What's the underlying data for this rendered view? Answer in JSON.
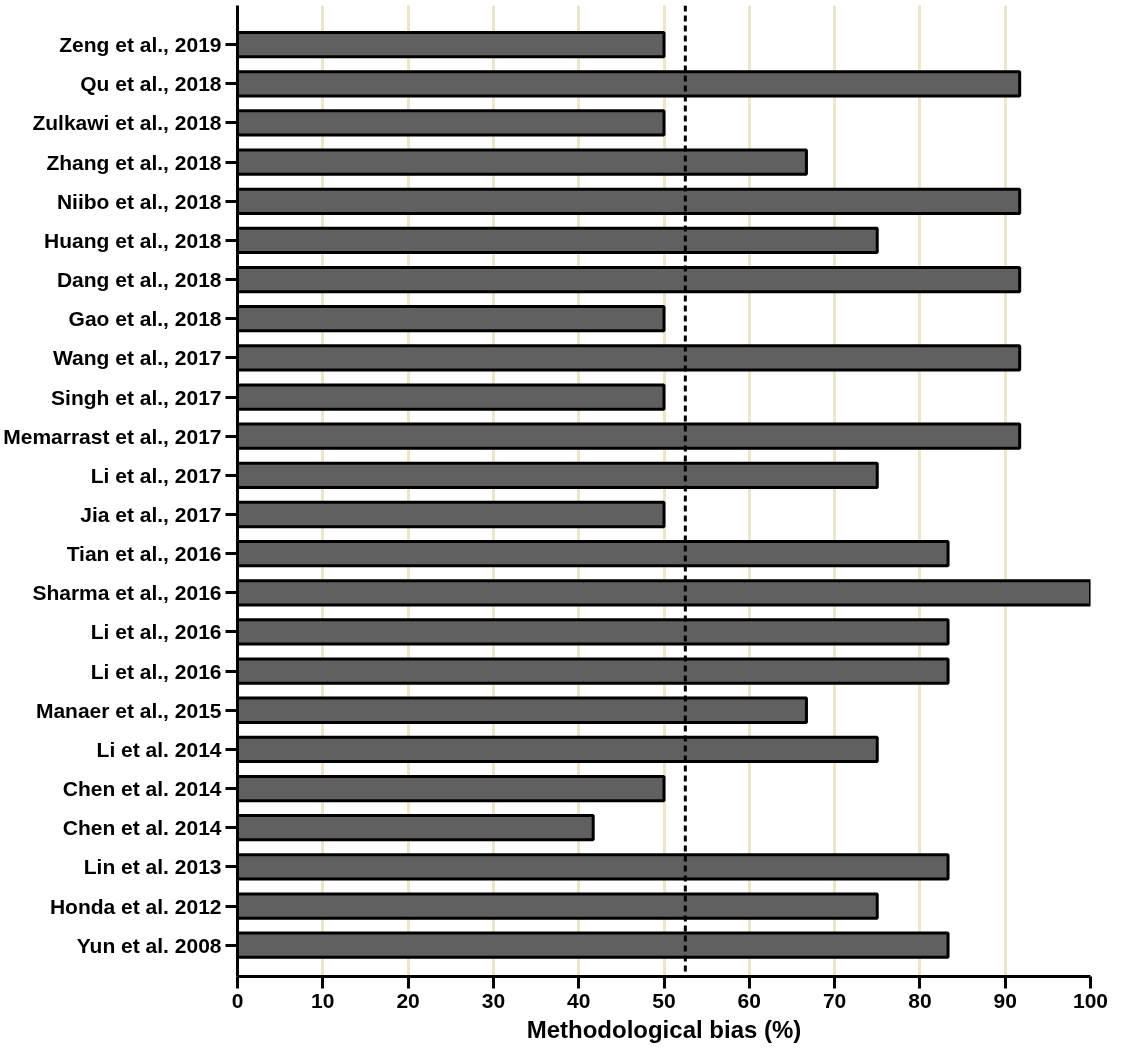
{
  "chart_data": {
    "type": "bar",
    "orientation": "horizontal",
    "xlabel": "Methodological bias (%)",
    "categories": [
      "Zeng et al., 2019",
      "Qu et al., 2018",
      "Zulkawi et al., 2018",
      "Zhang et al., 2018",
      "Niibo et al., 2018",
      "Huang et al., 2018",
      "Dang et al., 2018",
      "Gao et al., 2018",
      "Wang et al., 2017",
      "Singh et al., 2017",
      "Memarrast et al., 2017",
      "Li et al., 2017",
      "Jia et al., 2017",
      "Tian et al., 2016",
      "Sharma et al., 2016",
      "Li et al., 2016",
      "Li et al., 2016",
      "Manaer et al., 2015",
      "Li et al. 2014",
      "Chen et al. 2014",
      "Chen et al. 2014",
      "Lin et al. 2013",
      "Honda et al. 2012",
      "Yun et al. 2008"
    ],
    "values": [
      50,
      91.7,
      50,
      66.7,
      91.7,
      75,
      91.7,
      50,
      91.7,
      50,
      91.7,
      75,
      50,
      83.3,
      100,
      83.3,
      83.3,
      66.7,
      75,
      50,
      41.7,
      83.3,
      75,
      83.3
    ],
    "color": "#606060",
    "xlim": [
      0,
      100
    ],
    "xticks": [
      0,
      10,
      20,
      30,
      40,
      50,
      60,
      70,
      80,
      90,
      100
    ],
    "grid": "x",
    "ref_lines": [
      {
        "axis": "x",
        "value": 52.5,
        "color": "#000000",
        "line_style": "dashed"
      }
    ]
  }
}
